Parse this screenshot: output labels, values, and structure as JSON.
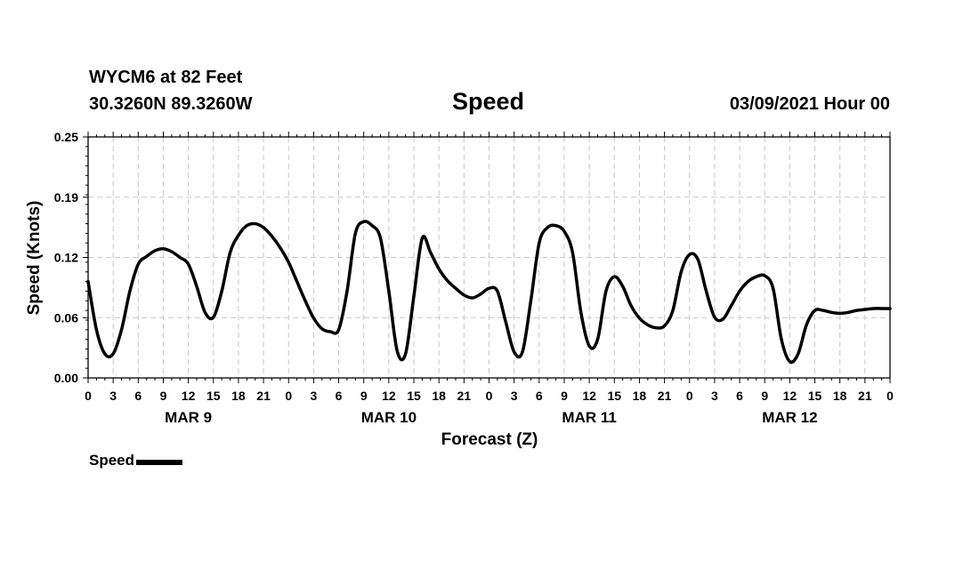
{
  "header": {
    "station": "WYCM6 at 82 Feet",
    "coords": "30.3260N 89.3260W",
    "title": "Speed",
    "date": "03/09/2021 Hour 00"
  },
  "legend": {
    "label": "Speed"
  },
  "colors": {
    "line": "#000000",
    "grid": "#c8c8c8",
    "axis": "#000000"
  },
  "chart_data": {
    "type": "line",
    "title": "Speed",
    "xlabel": "Forecast (Z)",
    "ylabel": "Speed (Knots)",
    "xlim": [
      0,
      96
    ],
    "ylim": [
      0,
      0.25
    ],
    "yticks": [
      "0.00",
      "0.06",
      "0.12",
      "0.19",
      "0.25"
    ],
    "ytick_values": [
      0,
      0.0625,
      0.125,
      0.1875,
      0.25
    ],
    "xtick_labels": [
      "0",
      "3",
      "6",
      "9",
      "12",
      "15",
      "18",
      "21",
      "0",
      "3",
      "6",
      "9",
      "12",
      "15",
      "18",
      "21",
      "0",
      "3",
      "6",
      "9",
      "12",
      "15",
      "18",
      "21",
      "0",
      "3",
      "6",
      "9",
      "12",
      "15",
      "18",
      "21",
      "0"
    ],
    "day_labels": [
      {
        "label": "MAR 9",
        "hour": 12
      },
      {
        "label": "MAR 10",
        "hour": 36
      },
      {
        "label": "MAR 11",
        "hour": 60
      },
      {
        "label": "MAR 12",
        "hour": 84
      }
    ],
    "grid": true,
    "series": [
      {
        "name": "Speed",
        "x": [
          0,
          1,
          2,
          3,
          4,
          5,
          6,
          7,
          8,
          9,
          10,
          11,
          12,
          13,
          14,
          15,
          16,
          17,
          18,
          19,
          20,
          21,
          22,
          23,
          24,
          25,
          26,
          27,
          28,
          29,
          30,
          31,
          32,
          33,
          34,
          35,
          36,
          37,
          38,
          39,
          40,
          41,
          42,
          43,
          44,
          45,
          46,
          47,
          48,
          49,
          50,
          51,
          52,
          53,
          54,
          55,
          56,
          57,
          58,
          59,
          60,
          61,
          62,
          63,
          64,
          65,
          66,
          67,
          68,
          69,
          70,
          71,
          72,
          73,
          74,
          75,
          76,
          77,
          78,
          79,
          80,
          81,
          82,
          83,
          84,
          85,
          86,
          87,
          88,
          89,
          90,
          91,
          92,
          93,
          94,
          95,
          96
        ],
        "values": [
          0.1,
          0.05,
          0.025,
          0.025,
          0.05,
          0.09,
          0.118,
          0.126,
          0.132,
          0.134,
          0.131,
          0.125,
          0.118,
          0.095,
          0.068,
          0.063,
          0.09,
          0.13,
          0.148,
          0.158,
          0.16,
          0.156,
          0.147,
          0.135,
          0.12,
          0.1,
          0.08,
          0.062,
          0.051,
          0.048,
          0.05,
          0.09,
          0.15,
          0.162,
          0.158,
          0.145,
          0.09,
          0.028,
          0.025,
          0.085,
          0.145,
          0.13,
          0.113,
          0.101,
          0.093,
          0.086,
          0.083,
          0.087,
          0.093,
          0.09,
          0.058,
          0.027,
          0.027,
          0.08,
          0.14,
          0.156,
          0.158,
          0.152,
          0.13,
          0.068,
          0.033,
          0.04,
          0.09,
          0.105,
          0.095,
          0.075,
          0.062,
          0.055,
          0.052,
          0.054,
          0.07,
          0.11,
          0.128,
          0.123,
          0.09,
          0.063,
          0.061,
          0.075,
          0.09,
          0.1,
          0.105,
          0.106,
          0.093,
          0.04,
          0.017,
          0.025,
          0.055,
          0.07,
          0.07,
          0.068,
          0.067,
          0.068,
          0.07,
          0.071,
          0.072,
          0.072,
          0.072
        ]
      }
    ]
  }
}
